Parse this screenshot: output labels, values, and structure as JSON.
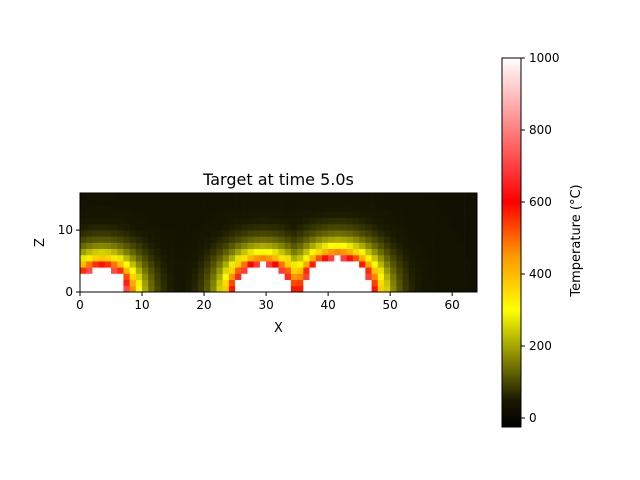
{
  "chart_data": {
    "type": "heatmap",
    "title": "Target at time 5.0s",
    "xlabel": "X",
    "ylabel": "Z",
    "xlim": [
      0,
      64
    ],
    "ylim": [
      0,
      16
    ],
    "grid": false,
    "x_ticks": [
      0,
      10,
      20,
      30,
      40,
      50,
      60
    ],
    "y_ticks": [
      0,
      10
    ],
    "grid_size": {
      "nx": 64,
      "nz": 16
    },
    "ambient_value": 25,
    "hot_spots": [
      {
        "x": 3.5,
        "z": 0,
        "radius": 4,
        "peak": 1000
      },
      {
        "x": 29.5,
        "z": 0,
        "radius": 4.5,
        "peak": 1000
      },
      {
        "x": 41.5,
        "z": 0,
        "radius": 5.5,
        "peak": 1000
      }
    ],
    "colorbar": {
      "label": "Temperature (°C)",
      "range": [
        -25,
        1000
      ],
      "ticks": [
        0,
        200,
        400,
        600,
        800,
        1000
      ],
      "colormap": "hot-yellow",
      "color_stops": [
        {
          "value": -25,
          "color": "#000000"
        },
        {
          "value": 50,
          "color": "#1a1a00"
        },
        {
          "value": 200,
          "color": "#a6a600"
        },
        {
          "value": 300,
          "color": "#ffff00"
        },
        {
          "value": 450,
          "color": "#ff9900"
        },
        {
          "value": 600,
          "color": "#ff0000"
        },
        {
          "value": 800,
          "color": "#ff8080"
        },
        {
          "value": 1000,
          "color": "#ffffff"
        }
      ]
    }
  }
}
